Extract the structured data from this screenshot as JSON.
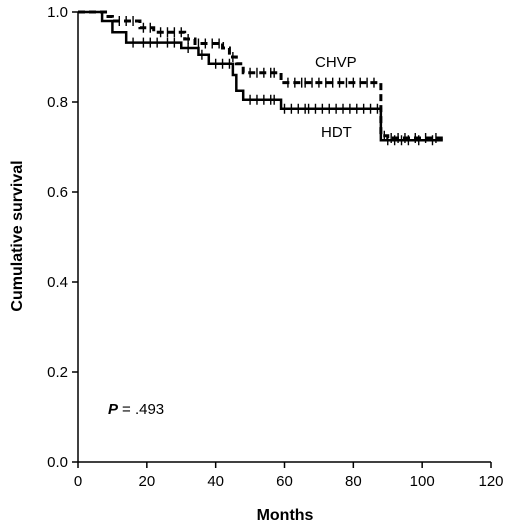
{
  "chart_data": {
    "type": "line",
    "xlabel": "Months",
    "ylabel": "Cumulative survival",
    "xlim": [
      0,
      120
    ],
    "ylim": [
      0.0,
      1.0
    ],
    "x_ticks": [
      "0",
      "20",
      "40",
      "60",
      "80",
      "100",
      "120"
    ],
    "y_ticks": [
      "0.0",
      "0.2",
      "0.4",
      "0.6",
      "0.8",
      "1.0"
    ],
    "grid": false,
    "annotation": {
      "p_label": "P",
      "p_value": "= .493"
    },
    "series": [
      {
        "name": "CHVP",
        "style": "dashed",
        "color": "#000000",
        "steps": [
          [
            0,
            1.0
          ],
          [
            8,
            0.99
          ],
          [
            10,
            0.98
          ],
          [
            18,
            0.965
          ],
          [
            22,
            0.955
          ],
          [
            31,
            0.94
          ],
          [
            34,
            0.93
          ],
          [
            42,
            0.92
          ],
          [
            44,
            0.9
          ],
          [
            46,
            0.885
          ],
          [
            48,
            0.865
          ],
          [
            59,
            0.843
          ],
          [
            88,
            0.725
          ],
          [
            90,
            0.72
          ],
          [
            106,
            0.72
          ]
        ],
        "censored": [
          12,
          14,
          16,
          19,
          21,
          24,
          26,
          28,
          30,
          32,
          35,
          37,
          39,
          41,
          45,
          50,
          52,
          54,
          56,
          57,
          61,
          63,
          65,
          66,
          68,
          70,
          72,
          74,
          76,
          78,
          80,
          82,
          84,
          86,
          89,
          91,
          93,
          95,
          98,
          101,
          104
        ]
      },
      {
        "name": "HDT",
        "style": "solid",
        "color": "#000000",
        "steps": [
          [
            0,
            1.0
          ],
          [
            7,
            0.98
          ],
          [
            10,
            0.955
          ],
          [
            14,
            0.932
          ],
          [
            30,
            0.92
          ],
          [
            35,
            0.905
          ],
          [
            38,
            0.885
          ],
          [
            45,
            0.86
          ],
          [
            46,
            0.825
          ],
          [
            48,
            0.805
          ],
          [
            59,
            0.785
          ],
          [
            88,
            0.715
          ],
          [
            106,
            0.715
          ]
        ],
        "censored": [
          16,
          19,
          21,
          23,
          26,
          28,
          32,
          36,
          40,
          42,
          44,
          50,
          52,
          54,
          56,
          57,
          60,
          62,
          64,
          66,
          67,
          69,
          71,
          73,
          75,
          77,
          79,
          81,
          83,
          85,
          87,
          90,
          92,
          94,
          96,
          99,
          103
        ]
      }
    ]
  }
}
